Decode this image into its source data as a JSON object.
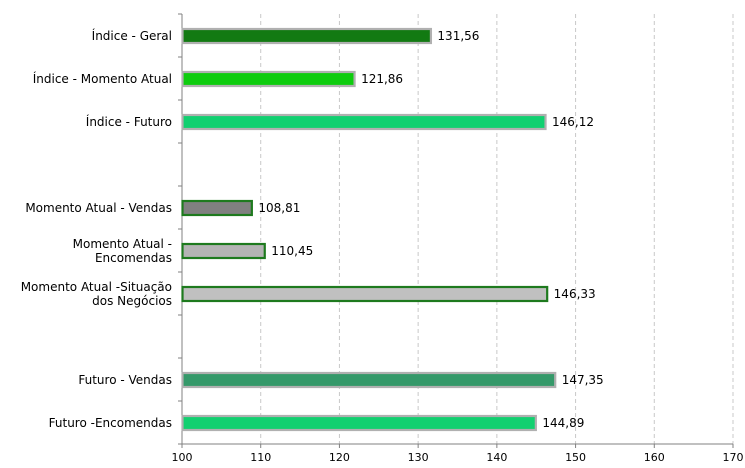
{
  "chart_data": {
    "type": "bar",
    "orientation": "horizontal",
    "title": "",
    "xlabel": "",
    "ylabel": "",
    "xlim": [
      100,
      170
    ],
    "x_ticks": [
      "100",
      "110",
      "120",
      "130",
      "140",
      "150",
      "160",
      "170"
    ],
    "grid": "vertical dashed",
    "legend": "none",
    "categories": [
      "Índice - Geral",
      "Índice - Momento Atual",
      "Índice - Futuro",
      "",
      "Momento Atual - Vendas",
      "Momento Atual - Encomendas",
      "Momento Atual -Situação dos Negócios",
      "",
      "Futuro - Vendas",
      "Futuro -Encomendas"
    ],
    "values": [
      131.56,
      121.86,
      146.12,
      null,
      108.81,
      110.45,
      146.33,
      null,
      147.35,
      144.89
    ],
    "value_labels": [
      "131,56",
      "121,86",
      "146,12",
      "",
      "108,81",
      "110,45",
      "146,33",
      "",
      "147,35",
      "144,89"
    ],
    "bar_colors": [
      "#127a12",
      "#0ecc0e",
      "#10d070",
      null,
      "#808080",
      "#b4b4b4",
      "#c0c0c0",
      null,
      "#35996a",
      "#12d070"
    ],
    "bar_borders": [
      "#b0b0b0",
      "#b0b0b0",
      "#b0b0b0",
      null,
      "#1e7a1e",
      "#1e7a1e",
      "#1e7a1e",
      null,
      "#b0b0b0",
      "#b0b0b0"
    ]
  }
}
